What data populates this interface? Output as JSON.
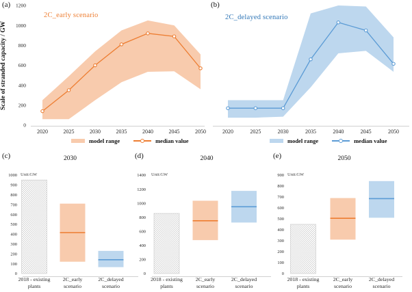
{
  "figure": {
    "panels": {
      "a": {
        "letter": "(a)",
        "title": "2C_early scenario"
      },
      "b": {
        "letter": "(b)",
        "title": "2C_delayed scenario"
      },
      "c": {
        "letter": "(c)",
        "title": "2030",
        "unit": "Unit:GW"
      },
      "d": {
        "letter": "(d)",
        "title": "2040",
        "unit": "Unit:GW"
      },
      "e": {
        "letter": "(e)",
        "title": "2050",
        "unit": "Unit:GW"
      }
    },
    "ylabel": "Scale of stranded capacity / GW",
    "legend": {
      "range_label": "model range",
      "median_label": "median value"
    }
  },
  "colors": {
    "orange_line": "#ED7D31",
    "orange_band": "#F8CBAD",
    "blue_line": "#5B9BD5",
    "blue_band": "#BDD7EE",
    "blue_title": "#2E75B6",
    "axis": "#D0D0D0",
    "hatch": "#C2C2C2",
    "hatch_border": "#C6C6C6"
  },
  "chart_data": [
    {
      "panel": "a",
      "type": "area",
      "title": "2C_early scenario",
      "x": [
        2020,
        2025,
        2030,
        2035,
        2040,
        2045,
        2050
      ],
      "median": [
        140,
        350,
        600,
        810,
        920,
        890,
        570
      ],
      "lower": [
        60,
        60,
        250,
        430,
        535,
        540,
        360
      ],
      "upper": [
        250,
        490,
        740,
        950,
        1050,
        1000,
        710
      ],
      "ylim": [
        0,
        1200
      ],
      "yticks": [
        0,
        200,
        400,
        600,
        800,
        1000,
        1200
      ],
      "show_yticks": true,
      "band": "orange_band",
      "line": "orange_line",
      "legend": [
        "model range",
        "median value"
      ]
    },
    {
      "panel": "b",
      "type": "area",
      "title": "2C_delayed scenario",
      "x": [
        2020,
        2025,
        2030,
        2035,
        2040,
        2045,
        2050
      ],
      "median": [
        170,
        170,
        170,
        660,
        1030,
        950,
        615
      ],
      "lower": [
        75,
        75,
        85,
        380,
        720,
        745,
        535
      ],
      "upper": [
        250,
        250,
        250,
        1120,
        1200,
        1190,
        880
      ],
      "ylim": [
        0,
        1200
      ],
      "yticks": [],
      "show_yticks": false,
      "band": "blue_band",
      "line": "blue_line",
      "legend": [
        "model range",
        "median value"
      ]
    },
    {
      "panel": "c",
      "type": "rangebar",
      "title": "2030",
      "unit": "Unit:GW",
      "ylim": [
        0,
        1000
      ],
      "ytick_step": 100,
      "categories": [
        [
          "2018 - existing",
          "plants"
        ],
        [
          "2C_early",
          "scenario"
        ],
        [
          "2C_delayed",
          "scenario"
        ]
      ],
      "bars": [
        {
          "kind": "hatch",
          "name": "existing-plants",
          "low": 0,
          "high": 950
        },
        {
          "kind": "range",
          "name": "early-scenario",
          "low": 120,
          "high": 710,
          "median": 415,
          "band": "orange_band",
          "line": "orange_line"
        },
        {
          "kind": "range",
          "name": "delayed-scenario",
          "low": 65,
          "high": 230,
          "median": 140,
          "band": "blue_band",
          "line": "blue_line"
        }
      ]
    },
    {
      "panel": "d",
      "type": "rangebar",
      "title": "2040",
      "unit": "Unit:GW",
      "ylim": [
        0,
        1400
      ],
      "ytick_step": 200,
      "categories": [
        [
          "2018 - existing",
          "plants"
        ],
        [
          "2C_early",
          "scenario"
        ],
        [
          "2C_delayed",
          "scenario"
        ]
      ],
      "bars": [
        {
          "kind": "hatch",
          "name": "existing-plants",
          "low": 0,
          "high": 855
        },
        {
          "kind": "range",
          "name": "early-scenario",
          "low": 475,
          "high": 1035,
          "median": 750,
          "band": "orange_band",
          "line": "orange_line"
        },
        {
          "kind": "range",
          "name": "delayed-scenario",
          "low": 725,
          "high": 1175,
          "median": 950,
          "band": "blue_band",
          "line": "blue_line"
        }
      ]
    },
    {
      "panel": "e",
      "type": "rangebar",
      "title": "2050",
      "unit": "Unit:GW",
      "ylim": [
        0,
        900
      ],
      "ytick_step": 100,
      "categories": [
        [
          "2018 - existing",
          "plants"
        ],
        [
          "2C_early",
          "scenario"
        ],
        [
          "2C_delayed",
          "scenario"
        ]
      ],
      "bars": [
        {
          "kind": "hatch",
          "name": "existing-plants",
          "low": 0,
          "high": 450
        },
        {
          "kind": "range",
          "name": "early-scenario",
          "low": 310,
          "high": 690,
          "median": 505,
          "band": "orange_band",
          "line": "orange_line"
        },
        {
          "kind": "range",
          "name": "delayed-scenario",
          "low": 510,
          "high": 845,
          "median": 685,
          "band": "blue_band",
          "line": "blue_line"
        }
      ]
    }
  ]
}
